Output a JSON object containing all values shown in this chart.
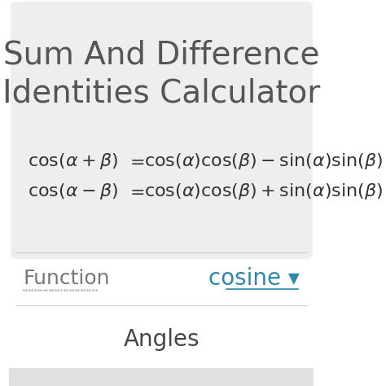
{
  "title_line1": "Sum And Difference",
  "title_line2": "Identities Calculator",
  "title_color": "#555555",
  "title_fontsize": 28,
  "bg_color": "#eeeeee",
  "white_color": "#ffffff",
  "formula_color": "#333333",
  "formula_fontsize": 16,
  "function_label": "Function",
  "function_label_color": "#777777",
  "function_label_fontsize": 18,
  "cosine_label": "cosine ▾",
  "cosine_color": "#2e86ab",
  "cosine_fontsize": 20,
  "angles_label": "Angles",
  "angles_color": "#444444",
  "angles_fontsize": 20,
  "divider_color": "#cccccc",
  "dotted_line_color": "#aaaaaa"
}
